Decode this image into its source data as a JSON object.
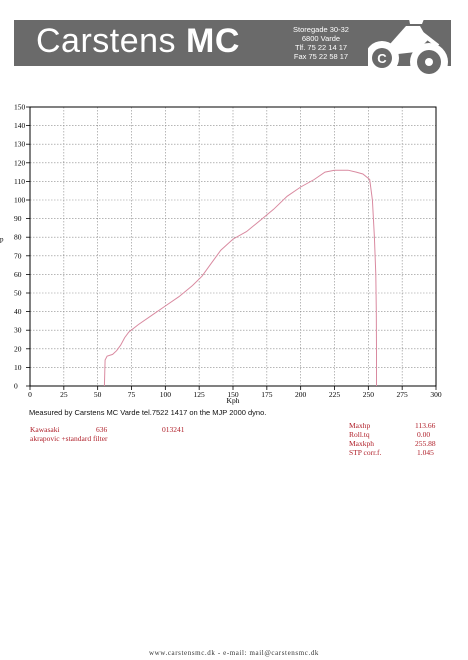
{
  "header": {
    "brand_name": "Carstens",
    "brand_suffix": "MC",
    "address_lines": [
      "Storegade 30-32",
      "6800 Varde",
      "Tlf. 75 22 14 17",
      "Fax 75 22 58 17"
    ]
  },
  "chart_data": {
    "type": "line",
    "ylabel_glyph": "p",
    "xlabel": "Kph",
    "x_ticks": [
      0,
      25,
      50,
      75,
      100,
      125,
      150,
      175,
      200,
      225,
      250,
      275,
      300
    ],
    "y_ticks": [
      0,
      10,
      20,
      30,
      40,
      50,
      60,
      70,
      80,
      90,
      100,
      110,
      120,
      130,
      140,
      150
    ],
    "xlim": [
      0,
      300
    ],
    "ylim": [
      0,
      150
    ],
    "grid": true,
    "series": [
      {
        "color": "#d98aa0",
        "points": [
          [
            55,
            0
          ],
          [
            55.5,
            14
          ],
          [
            57,
            16
          ],
          [
            61,
            17
          ],
          [
            64,
            19
          ],
          [
            67,
            22
          ],
          [
            70,
            26
          ],
          [
            73,
            29
          ],
          [
            80,
            33
          ],
          [
            90,
            38
          ],
          [
            100,
            43
          ],
          [
            110,
            48
          ],
          [
            120,
            54
          ],
          [
            127,
            59
          ],
          [
            133,
            65
          ],
          [
            141,
            73
          ],
          [
            150,
            79
          ],
          [
            160,
            83
          ],
          [
            170,
            89
          ],
          [
            180,
            95
          ],
          [
            190,
            102
          ],
          [
            200,
            107
          ],
          [
            210,
            111
          ],
          [
            218,
            115
          ],
          [
            225,
            116
          ],
          [
            235,
            116
          ],
          [
            241,
            115
          ],
          [
            246,
            114
          ],
          [
            251,
            111
          ],
          [
            253,
            100
          ],
          [
            254.5,
            80
          ],
          [
            255.5,
            60
          ],
          [
            255.9,
            40
          ],
          [
            256,
            20
          ],
          [
            256,
            0
          ]
        ]
      }
    ]
  },
  "measured_text": "Measured by Carstens MC Varde tel.7522 1417 on the MJP 2000 dyno.",
  "bike": {
    "make": "Kawasaki",
    "model": "636",
    "code": "013241",
    "setup": "akrapovic +standard filter"
  },
  "stats": [
    {
      "label": "Maxhp",
      "value": "113.66"
    },
    {
      "label": "Roll.tq",
      "value": "0.00"
    },
    {
      "label": "Maxkph",
      "value": "255.88"
    },
    {
      "label": "STP corr.f.",
      "value": "1.045"
    }
  ],
  "footer": "www.carstensmc.dk  -  e-mail: mail@carstensmc.dk",
  "colors": {
    "header_bg": "#6a6a6a",
    "curve": "#d98aa0",
    "info_red": "#b0202a"
  },
  "icons": {
    "logo": "motorcycle-logo-icon"
  }
}
